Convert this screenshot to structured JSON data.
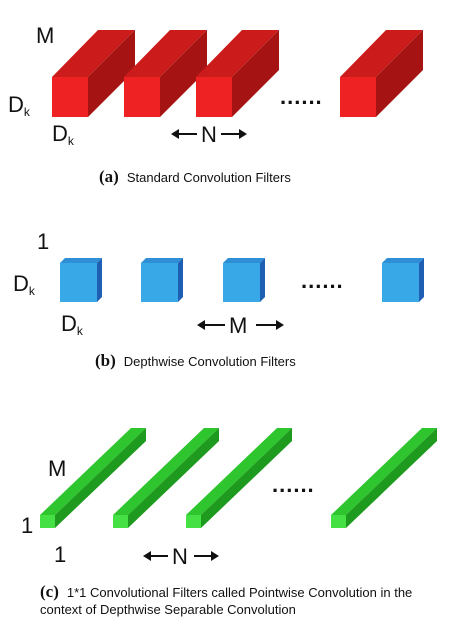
{
  "panels": [
    {
      "id": "a",
      "caption_letter": "(a)",
      "caption_text": "Standard Convolution Filters",
      "depth_label": "M",
      "height_label": "D",
      "height_sub": "k",
      "width_label": "D",
      "width_sub": "k",
      "count_label": "N",
      "ellipsis": "......",
      "colors": {
        "front": "#ee2222",
        "top": "#cc1b1b",
        "side": "#a51313"
      }
    },
    {
      "id": "b",
      "caption_letter": "(b)",
      "caption_text": "Depthwise Convolution Filters",
      "depth_label": "1",
      "height_label": "D",
      "height_sub": "k",
      "width_label": "D",
      "width_sub": "k",
      "count_label": "M",
      "ellipsis": "......",
      "colors": {
        "front": "#38a9e6",
        "top": "#2f8fd6",
        "side": "#1f5fb3"
      }
    },
    {
      "id": "c",
      "caption_letter": "(c)",
      "caption_line1": "1*1 Convolutional Filters called Pointwise Convolution in the",
      "caption_line2": "context of Depthwise Separable Convolution",
      "depth_label": "M",
      "height_label": "1",
      "width_label": "1",
      "count_label": "N",
      "ellipsis": "......",
      "colors": {
        "front": "#44e044",
        "top": "#2fc52f",
        "side": "#1e9a1e"
      }
    }
  ]
}
